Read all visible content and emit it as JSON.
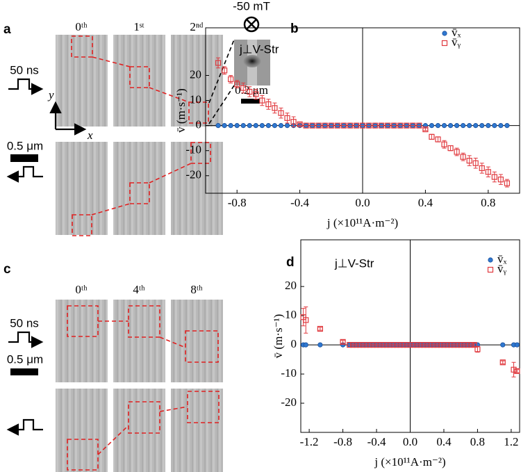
{
  "panels": {
    "labels": [
      "a",
      "b",
      "c",
      "d"
    ],
    "a": {
      "columns": [
        "0ᵗʰ",
        "1ˢᵗ",
        "2ⁿᵈ"
      ],
      "field": "-50 mT",
      "pulse": "50 ns",
      "y_axis": "y",
      "x_axis": "x",
      "scale": "0.5 μm",
      "inset_scale": "0.2 μm"
    },
    "c": {
      "columns": [
        "0ᵗʰ",
        "4ᵗʰ",
        "8ᵗʰ"
      ],
      "pulse": "50 ns",
      "scale": "0.5 μm"
    }
  },
  "chart_data": [
    {
      "type": "scatter",
      "title": "j⊥V-Str",
      "xlabel": "j (×10¹¹A·m⁻²)",
      "ylabel": "v̄ (m·s⁻¹)",
      "xlim": [
        -1,
        1
      ],
      "ylim": [
        -27,
        39
      ],
      "xticks": [
        -0.8,
        -0.4,
        {
          "value": 0,
          "label": "0.0"
        },
        0.4,
        0.8
      ],
      "yticks": [
        -20,
        -10,
        0,
        10,
        20
      ],
      "zero_lines": true,
      "legend": "upper right",
      "x": [
        -0.92,
        -0.88,
        -0.84,
        -0.8,
        -0.76,
        -0.72,
        -0.68,
        -0.64,
        -0.6,
        -0.56,
        -0.52,
        -0.48,
        -0.44,
        -0.4,
        -0.36,
        -0.32,
        -0.28,
        -0.24,
        -0.2,
        -0.16,
        -0.12,
        -0.08,
        -0.04,
        0,
        0.04,
        0.08,
        0.12,
        0.16,
        0.2,
        0.24,
        0.28,
        0.32,
        0.36,
        0.4,
        0.44,
        0.48,
        0.52,
        0.56,
        0.6,
        0.64,
        0.68,
        0.72,
        0.76,
        0.8,
        0.84,
        0.88,
        0.92
      ],
      "series": [
        {
          "name": "v̄ₓ",
          "color": "#2f78d0",
          "marker": "circle",
          "values": [
            0,
            0,
            0,
            0,
            0,
            0,
            0,
            0,
            0,
            0,
            0,
            0,
            0,
            0,
            0,
            0,
            0,
            0,
            0,
            0,
            0,
            0,
            0,
            0,
            0,
            0,
            0,
            0,
            0,
            0,
            0,
            0,
            0,
            0,
            0,
            0,
            0,
            0,
            0,
            0,
            0,
            0,
            0,
            0,
            0,
            0,
            0
          ]
        },
        {
          "name": "v̄ᵧ",
          "color": "#e0393e",
          "marker": "square",
          "values": [
            25,
            22,
            18.5,
            16.5,
            15,
            13.5,
            12.5,
            10,
            8.5,
            7,
            5,
            3,
            1.5,
            0.5,
            0,
            0,
            0,
            0,
            0,
            0,
            0,
            0,
            0,
            0,
            0,
            0,
            0,
            0,
            0,
            0,
            0,
            0,
            0,
            -1.5,
            -4.5,
            -5.5,
            -7.5,
            -9,
            -10.5,
            -12.5,
            -14,
            -15,
            -17,
            -18.5,
            -20.5,
            -21.5,
            -23
          ],
          "errors": [
            2,
            1.5,
            1.5,
            1.5,
            2,
            2,
            2,
            2,
            2,
            2,
            2,
            2,
            2,
            0.5,
            0,
            0,
            0,
            0,
            0,
            0,
            0,
            0,
            0,
            0,
            0,
            0,
            0,
            0,
            0,
            0,
            0,
            0,
            0,
            0.5,
            1,
            1,
            1.5,
            1,
            1.5,
            1.5,
            2,
            2,
            2,
            2,
            2,
            2,
            1.5
          ]
        }
      ]
    },
    {
      "type": "scatter",
      "title": "j⊥V-Str",
      "xlabel": "j (×10¹¹A·m⁻²)",
      "ylabel": "v̄ (m·s⁻¹)",
      "xlim": [
        -1.3,
        1.3
      ],
      "ylim": [
        -30,
        36
      ],
      "xticks": [
        -1.2,
        -0.8,
        -0.4,
        {
          "value": 0,
          "label": "0.0"
        },
        0.4,
        0.8,
        1.2
      ],
      "yticks": [
        -20,
        -10,
        0,
        10,
        20
      ],
      "zero_lines": true,
      "legend": "upper right",
      "x": [
        -1.27,
        -1.24,
        -1.07,
        -0.8,
        -0.72,
        -0.68,
        -0.64,
        -0.6,
        -0.56,
        -0.52,
        -0.48,
        -0.44,
        -0.4,
        -0.36,
        -0.32,
        -0.28,
        -0.24,
        -0.2,
        -0.16,
        -0.12,
        -0.08,
        -0.04,
        0,
        0.04,
        0.08,
        0.12,
        0.16,
        0.2,
        0.24,
        0.28,
        0.32,
        0.36,
        0.4,
        0.44,
        0.48,
        0.52,
        0.56,
        0.6,
        0.64,
        0.68,
        0.72,
        0.76,
        0.8,
        1.1,
        1.23,
        1.27
      ],
      "series": [
        {
          "name": "v̄ₓ",
          "color": "#2f78d0",
          "marker": "circle",
          "values": [
            0,
            0,
            0,
            0,
            0,
            0,
            0,
            0,
            0,
            0,
            0,
            0,
            0,
            0,
            0,
            0,
            0,
            0,
            0,
            0,
            0,
            0,
            0,
            0,
            0,
            0,
            0,
            0,
            0,
            0,
            0,
            0,
            0,
            0,
            0,
            0,
            0,
            0,
            0,
            0,
            0,
            0,
            0,
            0,
            0,
            0
          ]
        },
        {
          "name": "v̄ᵧ",
          "color": "#e0393e",
          "marker": "square",
          "values": [
            9.5,
            8.5,
            5.5,
            1,
            0,
            0,
            0,
            0,
            0,
            0,
            0,
            0,
            0,
            0,
            0,
            0,
            0,
            0,
            0,
            0,
            0,
            0,
            0,
            0,
            0,
            0,
            0,
            0,
            0,
            0,
            0,
            0,
            0,
            0,
            0,
            0,
            0,
            0,
            0,
            0,
            0,
            0,
            -1.5,
            -6,
            -8.5,
            -9
          ],
          "errors": [
            3,
            4.5,
            0.5,
            0.5,
            0,
            0,
            0,
            0,
            0,
            0,
            0,
            0,
            0,
            0,
            0,
            0,
            0,
            0,
            0,
            0,
            0,
            0,
            0,
            0,
            0,
            0,
            0,
            0,
            0,
            0,
            0,
            0,
            0,
            0,
            0,
            0,
            0,
            0,
            0,
            0,
            0,
            0.5,
            1,
            0.5,
            2.5,
            0.5
          ]
        }
      ]
    }
  ]
}
